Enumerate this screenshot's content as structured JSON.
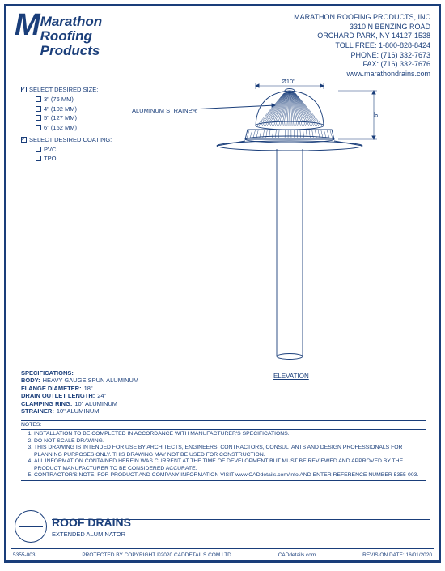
{
  "colors": {
    "primary": "#1a3e7a",
    "background": "#ffffff"
  },
  "company": {
    "logo_name_l1": "Marathon",
    "logo_name_l2": "Roofing",
    "logo_name_l3": "Products",
    "name": "MARATHON ROOFING PRODUCTS, INC",
    "address_l1": "3310 N BENZING ROAD",
    "address_l2": "ORCHARD PARK, NY 14127-1538",
    "toll_free": "TOLL FREE: 1-800-828-8424",
    "phone": "PHONE: (716) 332-7673",
    "fax": "FAX: (716) 332-7676",
    "website": "www.marathondrains.com"
  },
  "options": {
    "size_label": "SELECT DESIRED SIZE:",
    "sizes": [
      "3\" (76 MM)",
      "4\" (102 MM)",
      "5\" (127 MM)",
      "6\" (152 MM)"
    ],
    "coating_label": "SELECT DESIRED COATING:",
    "coatings": [
      "PVC",
      "TPO"
    ]
  },
  "drawing": {
    "callout": "ALUMINUM STRAINER",
    "dim_diameter": "Ø10\"",
    "dim_height": "6\"",
    "view_label": "ELEVATION",
    "stroke_width": 0.9,
    "hatch_count": 40
  },
  "specifications": {
    "title": "SPECIFICATIONS:",
    "rows": [
      {
        "label": "BODY:",
        "value": "HEAVY GAUGE SPUN ALUMINUM"
      },
      {
        "label": "FLANGE DIAMETER:",
        "value": "18\""
      },
      {
        "label": "DRAIN OUTLET LENGTH:",
        "value": "24\""
      },
      {
        "label": "CLAMPING RING:",
        "value": "10\" ALUMINUM"
      },
      {
        "label": "STRAINER:",
        "value": "10\" ALUMINUM"
      }
    ]
  },
  "notes": {
    "title": "NOTES:",
    "items": [
      "INSTALLATION TO BE COMPLETED IN ACCORDANCE WITH MANUFACTURER'S SPECIFICATIONS.",
      "DO NOT SCALE DRAWING.",
      "THIS DRAWING IS INTENDED FOR USE BY ARCHITECTS, ENGINEERS, CONTRACTORS, CONSULTANTS AND DESIGN PROFESSIONALS FOR PLANNING PURPOSES ONLY.  THIS DRAWING MAY NOT BE USED FOR CONSTRUCTION.",
      "ALL INFORMATION CONTAINED HEREIN WAS CURRENT AT THE TIME OF DEVELOPMENT BUT MUST BE REVIEWED AND APPROVED BY THE PRODUCT MANUFACTURER TO BE CONSIDERED ACCURATE.",
      "CONTRACTOR'S NOTE: FOR PRODUCT AND COMPANY INFORMATION VISIT www.CADdetails.com/info AND ENTER REFERENCE NUMBER  5355-003."
    ]
  },
  "title_block": {
    "title": "ROOF DRAINS",
    "subtitle": "EXTENDED ALUMINATOR"
  },
  "footer": {
    "ref": "5355-003",
    "copyright": "PROTECTED BY COPYRIGHT ©2020 CADDETAILS.COM LTD",
    "site": "CADdetails.com",
    "revision": "REVISION DATE: 16/01/2020"
  }
}
